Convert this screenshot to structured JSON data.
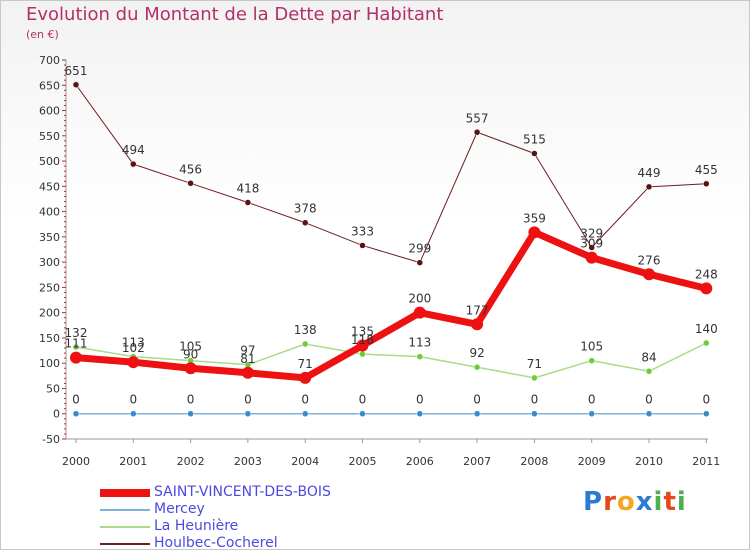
{
  "title": "Evolution du Montant de la Dette par Habitant",
  "subtitle": "(en €)",
  "logo": {
    "text": "Proxiti",
    "colors": [
      "#2b7bd0",
      "#e24a1c",
      "#f5a623",
      "#2b7bd0",
      "#4caf50",
      "#e24a1c",
      "#4caf50"
    ]
  },
  "chart_data": {
    "type": "line",
    "x": [
      "2000",
      "2001",
      "2002",
      "2003",
      "2004",
      "2005",
      "2006",
      "2007",
      "2008",
      "2009",
      "2010",
      "2011"
    ],
    "ylim": [
      -50,
      700
    ],
    "yticks": [
      "-50",
      "0",
      "50",
      "100",
      "150",
      "200",
      "250",
      "300",
      "350",
      "400",
      "450",
      "500",
      "550",
      "600",
      "650",
      "700"
    ],
    "grid": false,
    "legend_position": "bottom",
    "series": [
      {
        "name": "Houlbec-Cocherel",
        "color": "#6e1f1f",
        "point_color": "#5a1212",
        "width": 1,
        "values": [
          651,
          494,
          456,
          418,
          378,
          333,
          299,
          557,
          515,
          329,
          449,
          455
        ],
        "labels": [
          "651",
          "494",
          "456",
          "418",
          "378",
          "333",
          "299",
          "557",
          "515",
          "329",
          "449",
          "455"
        ]
      },
      {
        "name": "La Heunière",
        "color": "#a8dc8a",
        "point_color": "#6ccc3a",
        "width": 1.5,
        "values": [
          132,
          113,
          105,
          97,
          138,
          118,
          113,
          92,
          71,
          105,
          84,
          140
        ],
        "labels": [
          "132",
          "113",
          "105",
          "97",
          "138",
          "118",
          "113",
          "92",
          "71",
          "105",
          "84",
          "140"
        ]
      },
      {
        "name": "Mercey",
        "color": "#7fb3d5",
        "point_color": "#3a8bc8",
        "width": 1.5,
        "values": [
          0,
          0,
          0,
          0,
          0,
          0,
          0,
          0,
          0,
          0,
          0,
          0
        ],
        "labels": [
          "0",
          "0",
          "0",
          "0",
          "0",
          "0",
          "0",
          "0",
          "0",
          "0",
          "0",
          "0"
        ]
      },
      {
        "name": "SAINT-VINCENT-DES-BOIS",
        "color": "#ee1111",
        "point_color": "#ee1111",
        "width": 7,
        "values": [
          111,
          102,
          90,
          81,
          71,
          135,
          200,
          177,
          359,
          309,
          276,
          248
        ],
        "labels": [
          "111",
          "102",
          "90",
          "81",
          "71",
          "135",
          "200",
          "177",
          "359",
          "309",
          "276",
          "248"
        ]
      }
    ],
    "legend": [
      "SAINT-VINCENT-DES-BOIS",
      "Mercey",
      "La Heunière",
      "Houlbec-Cocherel"
    ]
  }
}
